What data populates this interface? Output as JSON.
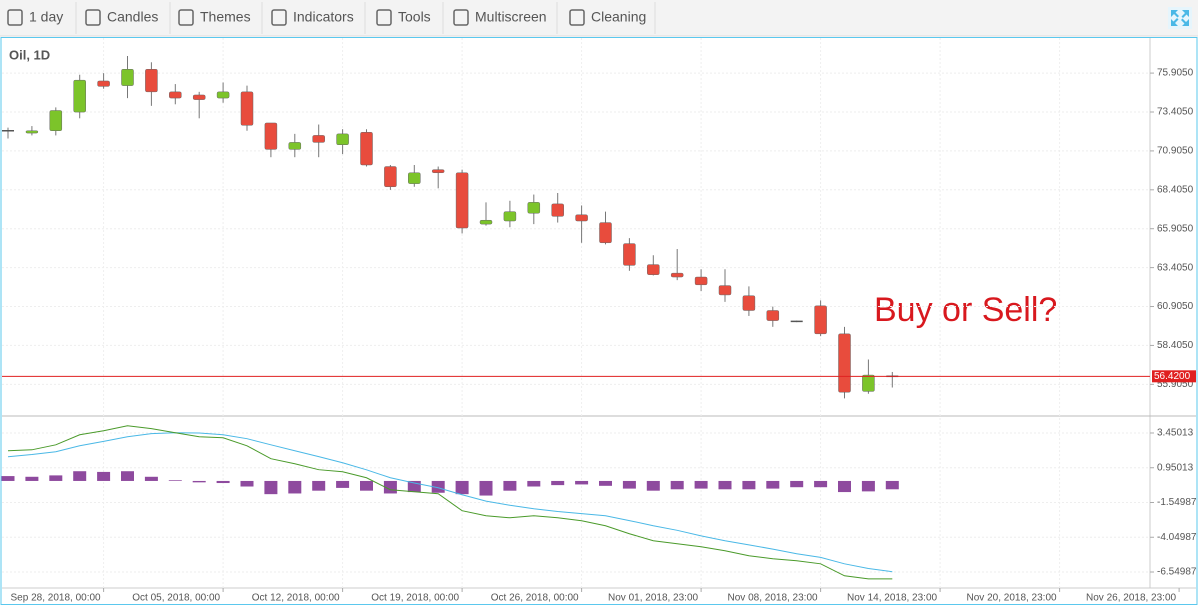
{
  "toolbar": {
    "items": [
      "1 day",
      "Candles",
      "Themes",
      "Indicators",
      "Tools",
      "Multiscreen",
      "Cleaning"
    ]
  },
  "chart_data": {
    "type": "candlestick",
    "title": "Oil, 1D",
    "annotation": "Buy or Sell?",
    "categories": [
      null,
      null,
      null,
      null,
      "Sep 28, 2018, 00:00",
      null,
      null,
      null,
      null,
      "Oct 05, 2018, 00:00",
      null,
      null,
      null,
      null,
      "Oct 12, 2018, 00:00",
      null,
      null,
      null,
      null,
      "Oct 19, 2018, 00:00",
      null,
      null,
      null,
      null,
      "Oct 26, 2018, 00:00",
      null,
      null,
      null,
      null,
      "Nov 01, 2018, 23:00",
      null,
      null,
      null,
      null,
      "Nov 08, 2018, 23:00",
      null,
      null,
      null,
      null,
      "Nov 14, 2018, 23:00",
      null,
      null,
      null,
      null,
      "Nov 20, 2018, 23:00",
      null,
      null,
      null,
      null,
      "Nov 26, 2018, 23:00"
    ],
    "open": [
      72.2,
      72.05,
      72.2,
      73.4,
      75.4,
      75.1,
      76.15,
      74.7,
      74.5,
      74.3,
      74.7,
      72.7,
      71.0,
      71.9,
      71.3,
      72.1,
      69.9,
      68.8,
      69.7,
      69.5,
      66.2,
      66.4,
      66.9,
      67.5,
      66.8,
      66.3,
      64.95,
      63.6,
      63.05,
      62.8,
      62.25,
      61.6,
      60.65,
      59.95,
      60.95,
      59.15,
      55.45,
      56.42,
      null,
      null,
      null,
      null,
      null,
      null,
      null,
      null,
      null,
      null,
      null,
      null
    ],
    "high": [
      72.4,
      72.5,
      73.7,
      75.8,
      75.9,
      77.0,
      76.6,
      75.2,
      74.7,
      75.3,
      75.1,
      72.7,
      72.0,
      72.6,
      72.3,
      72.3,
      70.0,
      70.0,
      69.9,
      69.7,
      67.6,
      67.7,
      68.1,
      68.2,
      67.4,
      67.0,
      65.3,
      64.2,
      64.6,
      63.3,
      63.3,
      62.2,
      60.9,
      60.0,
      61.3,
      59.6,
      57.5,
      56.7,
      null,
      null,
      null,
      null,
      null,
      null,
      null,
      null,
      null,
      null,
      null,
      null
    ],
    "low": [
      71.7,
      71.9,
      71.9,
      73.0,
      74.9,
      74.3,
      73.8,
      73.9,
      73.0,
      74.0,
      72.2,
      70.5,
      70.5,
      70.5,
      70.7,
      69.9,
      68.4,
      68.6,
      68.5,
      65.6,
      66.1,
      66.0,
      66.2,
      66.3,
      65.0,
      64.9,
      63.2,
      62.9,
      62.6,
      61.9,
      61.2,
      60.3,
      59.6,
      59.9,
      59.0,
      55.0,
      55.3,
      55.7,
      null,
      null,
      null,
      null,
      null,
      null,
      null,
      null,
      null,
      null,
      null,
      null
    ],
    "close": [
      72.2,
      72.2,
      73.5,
      75.45,
      75.05,
      76.15,
      74.7,
      74.3,
      74.2,
      74.7,
      72.55,
      71.0,
      71.45,
      71.45,
      72.0,
      70.0,
      68.6,
      69.5,
      69.5,
      65.95,
      66.45,
      67.0,
      67.6,
      66.7,
      66.4,
      65.0,
      63.55,
      62.95,
      62.8,
      62.3,
      61.65,
      60.65,
      60.0,
      59.95,
      59.15,
      55.4,
      56.5,
      56.42,
      null,
      null,
      null,
      null,
      null,
      null,
      null,
      null,
      null,
      null,
      null,
      null
    ],
    "up_color": "#7cc42a",
    "down_color": "#e84c3d",
    "flat_color": "#555555",
    "ylim": [
      53.87,
      78.16
    ],
    "yticks": [
      {
        "value": 75.905,
        "label": "75.9050"
      },
      {
        "value": 73.405,
        "label": "73.4050"
      },
      {
        "value": 70.905,
        "label": "70.9050"
      },
      {
        "value": 68.405,
        "label": "68.4050"
      },
      {
        "value": 65.905,
        "label": "65.9050"
      },
      {
        "value": 63.405,
        "label": "63.4050"
      },
      {
        "value": 60.905,
        "label": "60.9050"
      },
      {
        "value": 58.405,
        "label": "58.4050"
      },
      {
        "value": 55.905,
        "label": "55.9050"
      }
    ],
    "last_price": {
      "value": 56.42,
      "label": "56.4200",
      "color": "#e02020"
    },
    "grid": true,
    "indicator": {
      "type": "macd",
      "ylim": [
        -7.7,
        4.6
      ],
      "yticks": [
        3.45013,
        0.95013,
        -1.54987,
        -4.04987,
        -6.54987
      ],
      "series": [
        {
          "color": "#4ab8e6",
          "values": [
            1.74,
            1.9,
            2.1,
            2.53,
            2.85,
            3.18,
            3.4,
            3.47,
            3.45,
            3.32,
            3.04,
            2.6,
            2.17,
            1.75,
            1.31,
            0.8,
            0.23,
            -0.15,
            -0.49,
            -0.99,
            -1.45,
            -1.75,
            -2.0,
            -2.2,
            -2.35,
            -2.5,
            -2.85,
            -3.22,
            -3.55,
            -3.95,
            -4.3,
            -4.6,
            -4.9,
            -5.24,
            -5.5,
            -5.96,
            -6.3,
            -6.53,
            null,
            null,
            null,
            null,
            null,
            null,
            null,
            null,
            null,
            null,
            null,
            null
          ]
        },
        {
          "color": "#4a9a2a",
          "values": [
            2.17,
            2.24,
            2.6,
            3.32,
            3.61,
            3.97,
            3.76,
            3.47,
            3.18,
            3.11,
            2.53,
            1.6,
            1.24,
            0.81,
            0.66,
            0.23,
            -0.63,
            -0.78,
            -0.92,
            -2.14,
            -2.5,
            -2.65,
            -2.5,
            -2.65,
            -2.86,
            -3.22,
            -3.8,
            -4.3,
            -4.52,
            -4.73,
            -5.02,
            -5.38,
            -5.6,
            -5.74,
            -5.96,
            -6.82,
            -7.04,
            -7.04,
            null,
            null,
            null,
            null,
            null,
            null,
            null,
            null,
            null,
            null,
            null,
            null
          ]
        }
      ],
      "histogram": {
        "color": "#8e4a9e",
        "values": [
          0.35,
          0.3,
          0.4,
          0.7,
          0.65,
          0.7,
          0.3,
          0.05,
          -0.1,
          -0.15,
          -0.4,
          -0.95,
          -0.9,
          -0.7,
          -0.5,
          -0.7,
          -0.9,
          -0.8,
          -0.85,
          -0.95,
          -1.05,
          -0.7,
          -0.4,
          -0.3,
          -0.25,
          -0.35,
          -0.55,
          -0.7,
          -0.6,
          -0.55,
          -0.6,
          -0.6,
          -0.55,
          -0.45,
          -0.45,
          -0.8,
          -0.75,
          -0.6,
          null,
          null,
          null,
          null,
          null,
          null,
          null,
          null,
          null,
          null,
          null,
          null
        ]
      }
    }
  }
}
